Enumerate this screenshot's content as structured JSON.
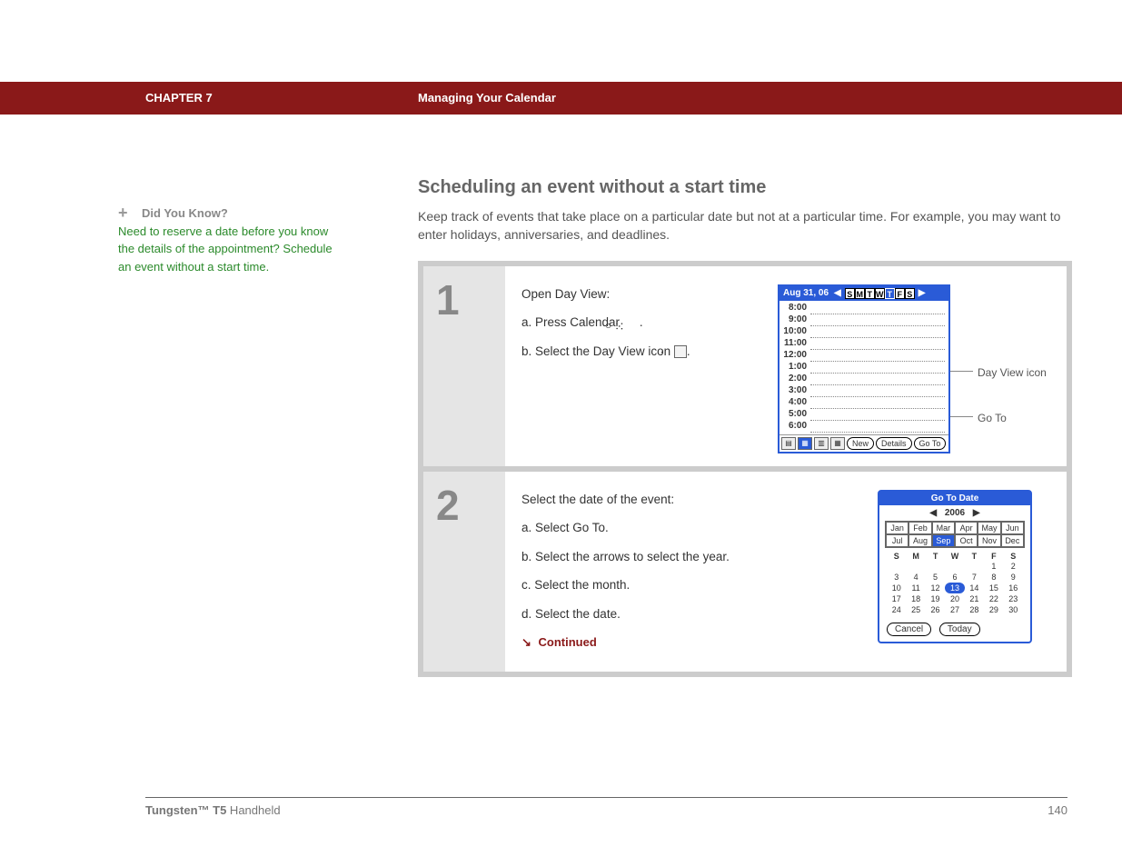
{
  "header": {
    "chapter": "CHAPTER 7",
    "subtitle": "Managing Your Calendar"
  },
  "sidebar": {
    "dyk_label": "Did You Know?",
    "tip_text": "Need to reserve a date before you know the details of the appointment? Schedule an event without a start time."
  },
  "main": {
    "heading": "Scheduling an event without a start time",
    "intro": "Keep track of events that take place on a particular date but not at a particular time. For example, you may want to enter holidays, anniversaries, and deadlines."
  },
  "steps": [
    {
      "num": "1",
      "lead": "Open Day View:",
      "items": [
        "a.  Press Calendar ",
        "b.  Select the Day View icon "
      ],
      "callouts": {
        "dayview": "Day View icon",
        "goto": "Go To"
      }
    },
    {
      "num": "2",
      "lead": "Select the date of the event:",
      "items": [
        "a.  Select Go To.",
        "b.  Select the arrows to select the year.",
        "c.  Select the month.",
        "d.  Select the date."
      ],
      "continued": "Continued"
    }
  ],
  "dayview": {
    "date_label": "Aug 31, 06",
    "dow": [
      "S",
      "M",
      "T",
      "W",
      "T",
      "F",
      "S"
    ],
    "times": [
      "8:00",
      "9:00",
      "10:00",
      "11:00",
      "12:00",
      "1:00",
      "2:00",
      "3:00",
      "4:00",
      "5:00",
      "6:00"
    ],
    "buttons": {
      "new": "New",
      "details": "Details",
      "goto": "Go To"
    }
  },
  "gotodate": {
    "title": "Go To Date",
    "year": "2006",
    "months": [
      "Jan",
      "Feb",
      "Mar",
      "Apr",
      "May",
      "Jun",
      "Jul",
      "Aug",
      "Sep",
      "Oct",
      "Nov",
      "Dec"
    ],
    "selected_month_index": 8,
    "dow": [
      "S",
      "M",
      "T",
      "W",
      "T",
      "F",
      "S"
    ],
    "days": [
      "",
      "",
      "",
      "",
      "",
      "1",
      "2",
      "3",
      "4",
      "5",
      "6",
      "7",
      "8",
      "9",
      "10",
      "11",
      "12",
      "13",
      "14",
      "15",
      "16",
      "17",
      "18",
      "19",
      "20",
      "21",
      "22",
      "23",
      "24",
      "25",
      "26",
      "27",
      "28",
      "29",
      "30"
    ],
    "selected_day": "13",
    "buttons": {
      "cancel": "Cancel",
      "today": "Today"
    }
  },
  "footer": {
    "product": "Tungsten™ T5",
    "suffix": " Handheld",
    "page": "140"
  },
  "colors": {
    "header_bg": "#8a1919",
    "accent_blue": "#2a5bd7",
    "tip_green": "#2b8a2b",
    "gray_text": "#888",
    "frame_gray": "#cccccc",
    "stepnum_bg": "#e5e5e5"
  }
}
